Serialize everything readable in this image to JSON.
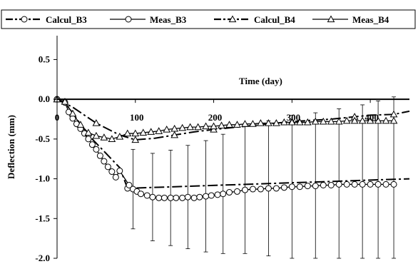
{
  "chart_data": {
    "type": "line",
    "xlabel": "Time (day)",
    "ylabel": "Deflection (mm)",
    "xlim": [
      0,
      450
    ],
    "ylim": [
      -2.0,
      0.8
    ],
    "x_ticks": [
      0,
      100,
      200,
      300,
      400
    ],
    "y_ticks": [
      0.5,
      0.0,
      -0.5,
      -1.0,
      -1.5,
      -2.0
    ],
    "x_tick_labels": [
      "0",
      "100",
      "200",
      "300",
      "400"
    ],
    "y_tick_labels": [
      "0.5",
      "0.0",
      "-0.5",
      "-1.0",
      "-1.5",
      "-2.0"
    ],
    "grid": false,
    "legend_position": "top",
    "series": [
      {
        "name": "Calcul_B3",
        "marker": "circle",
        "line": "dash-dot",
        "x": [
          0,
          10,
          40,
          80,
          90,
          450
        ],
        "y": [
          0,
          -0.04,
          -0.45,
          -0.86,
          -1.12,
          -1.0
        ]
      },
      {
        "name": "Meas_B3",
        "marker": "circle",
        "line": "solid",
        "x": [
          0,
          10,
          15,
          20,
          25,
          30,
          35,
          40,
          45,
          50,
          55,
          60,
          65,
          70,
          75,
          80,
          92,
          97,
          102,
          107,
          115,
          122,
          130,
          137,
          145,
          152,
          160,
          167,
          175,
          182,
          190,
          197,
          205,
          212,
          220,
          230,
          240,
          250,
          260,
          270,
          280,
          290,
          300,
          310,
          320,
          330,
          340,
          350,
          360,
          370,
          380,
          390,
          400,
          410,
          420,
          430
        ],
        "y": [
          0,
          -0.04,
          -0.16,
          -0.24,
          -0.31,
          -0.37,
          -0.43,
          -0.5,
          -0.57,
          -0.63,
          -0.71,
          -0.78,
          -0.85,
          -0.91,
          -0.98,
          -0.9,
          -1.08,
          -1.13,
          -1.16,
          -1.19,
          -1.21,
          -1.23,
          -1.24,
          -1.24,
          -1.24,
          -1.24,
          -1.24,
          -1.23,
          -1.24,
          -1.23,
          -1.22,
          -1.21,
          -1.2,
          -1.19,
          -1.17,
          -1.16,
          -1.14,
          -1.13,
          -1.13,
          -1.12,
          -1.12,
          -1.11,
          -1.1,
          -1.1,
          -1.09,
          -1.09,
          -1.08,
          -1.08,
          -1.07,
          -1.07,
          -1.07,
          -1.07,
          -1.07,
          -1.07,
          -1.07,
          -1.07
        ]
      },
      {
        "name": "Calcul_B4",
        "marker": "triangle",
        "line": "dash-dot",
        "x": [
          0,
          20,
          50,
          80,
          100,
          125,
          150,
          175,
          200,
          250,
          300,
          350,
          380,
          400,
          430,
          450
        ],
        "y": [
          0,
          -0.1,
          -0.3,
          -0.45,
          -0.51,
          -0.49,
          -0.45,
          -0.41,
          -0.38,
          -0.33,
          -0.28,
          -0.25,
          -0.22,
          -0.2,
          -0.19,
          -0.15
        ]
      },
      {
        "name": "Meas_B4",
        "marker": "triangle",
        "line": "solid",
        "x": [
          0,
          10,
          20,
          30,
          40,
          50,
          60,
          70,
          80,
          90,
          100,
          110,
          120,
          130,
          140,
          150,
          160,
          170,
          180,
          190,
          200,
          210,
          220,
          230,
          240,
          250,
          260,
          270,
          280,
          290,
          300,
          310,
          320,
          330,
          340,
          350,
          360,
          370,
          380,
          390,
          400,
          410,
          420,
          430
        ],
        "y": [
          0,
          -0.03,
          -0.18,
          -0.32,
          -0.42,
          -0.46,
          -0.48,
          -0.5,
          -0.47,
          -0.43,
          -0.43,
          -0.42,
          -0.41,
          -0.4,
          -0.38,
          -0.37,
          -0.36,
          -0.35,
          -0.35,
          -0.34,
          -0.34,
          -0.33,
          -0.32,
          -0.32,
          -0.31,
          -0.31,
          -0.3,
          -0.3,
          -0.3,
          -0.29,
          -0.29,
          -0.29,
          -0.29,
          -0.28,
          -0.28,
          -0.28,
          -0.28,
          -0.27,
          -0.27,
          -0.27,
          -0.27,
          -0.27,
          -0.27,
          -0.27
        ]
      }
    ],
    "error_bars": {
      "series": "Meas_B3",
      "x": [
        97,
        122,
        145,
        167,
        190,
        212,
        240,
        270,
        300,
        330,
        360,
        390,
        410,
        430
      ],
      "y": [
        -1.13,
        -1.23,
        -1.24,
        -1.23,
        -1.22,
        -1.19,
        -1.14,
        -1.12,
        -1.1,
        -1.09,
        -1.07,
        -1.07,
        -1.07,
        -1.07
      ],
      "err": [
        0.5,
        0.55,
        0.6,
        0.65,
        0.7,
        0.75,
        0.8,
        0.85,
        0.9,
        0.92,
        0.95,
        1.0,
        1.05,
        1.1
      ]
    }
  }
}
